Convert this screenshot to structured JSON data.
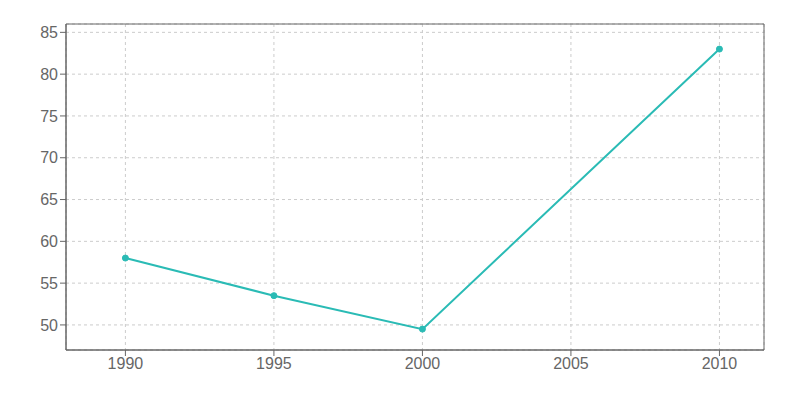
{
  "chart_data": {
    "type": "line",
    "x": [
      1990,
      1995,
      2000,
      2010
    ],
    "values": [
      58,
      53.5,
      49.5,
      83
    ],
    "color": "#2abbb5",
    "marker": "circle",
    "xlim": [
      1988.0,
      2011.5
    ],
    "xticks": [
      1990,
      1995,
      2000,
      2005,
      2010
    ],
    "ylim": [
      47,
      86
    ],
    "yticks": [
      50,
      55,
      60,
      65,
      70,
      75,
      80,
      85
    ],
    "grid": true
  }
}
